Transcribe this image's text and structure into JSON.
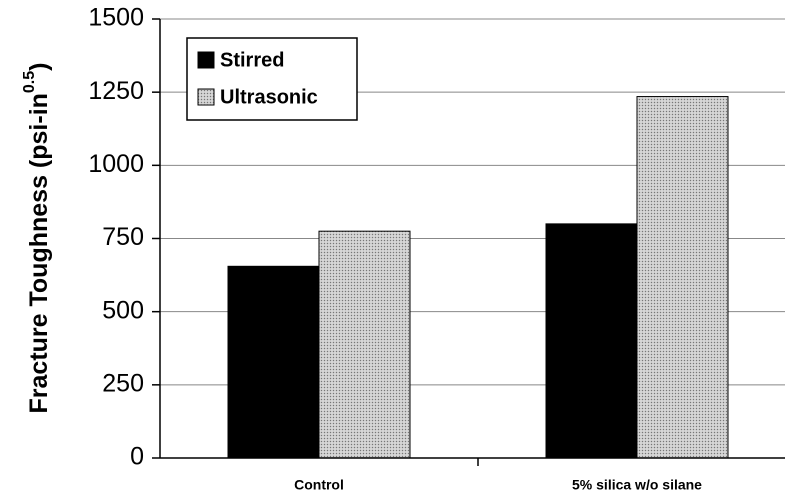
{
  "chart_data": {
    "type": "bar",
    "y_label": [
      "Fracture Toughness (psi-in",
      "0.5",
      ")"
    ],
    "categories": [
      "Control",
      "5% silica w/o silane"
    ],
    "series": [
      {
        "name": "Stirred",
        "color": "#000000",
        "values": [
          655,
          800
        ]
      },
      {
        "name": "Ultrasonic",
        "color": "#c8c8c8",
        "values": [
          775,
          1235
        ]
      }
    ],
    "ylim": [
      0,
      1500
    ],
    "yticks": [
      0,
      250,
      500,
      750,
      1000,
      1250,
      1500
    ],
    "grid": true,
    "legend": "top-left"
  }
}
